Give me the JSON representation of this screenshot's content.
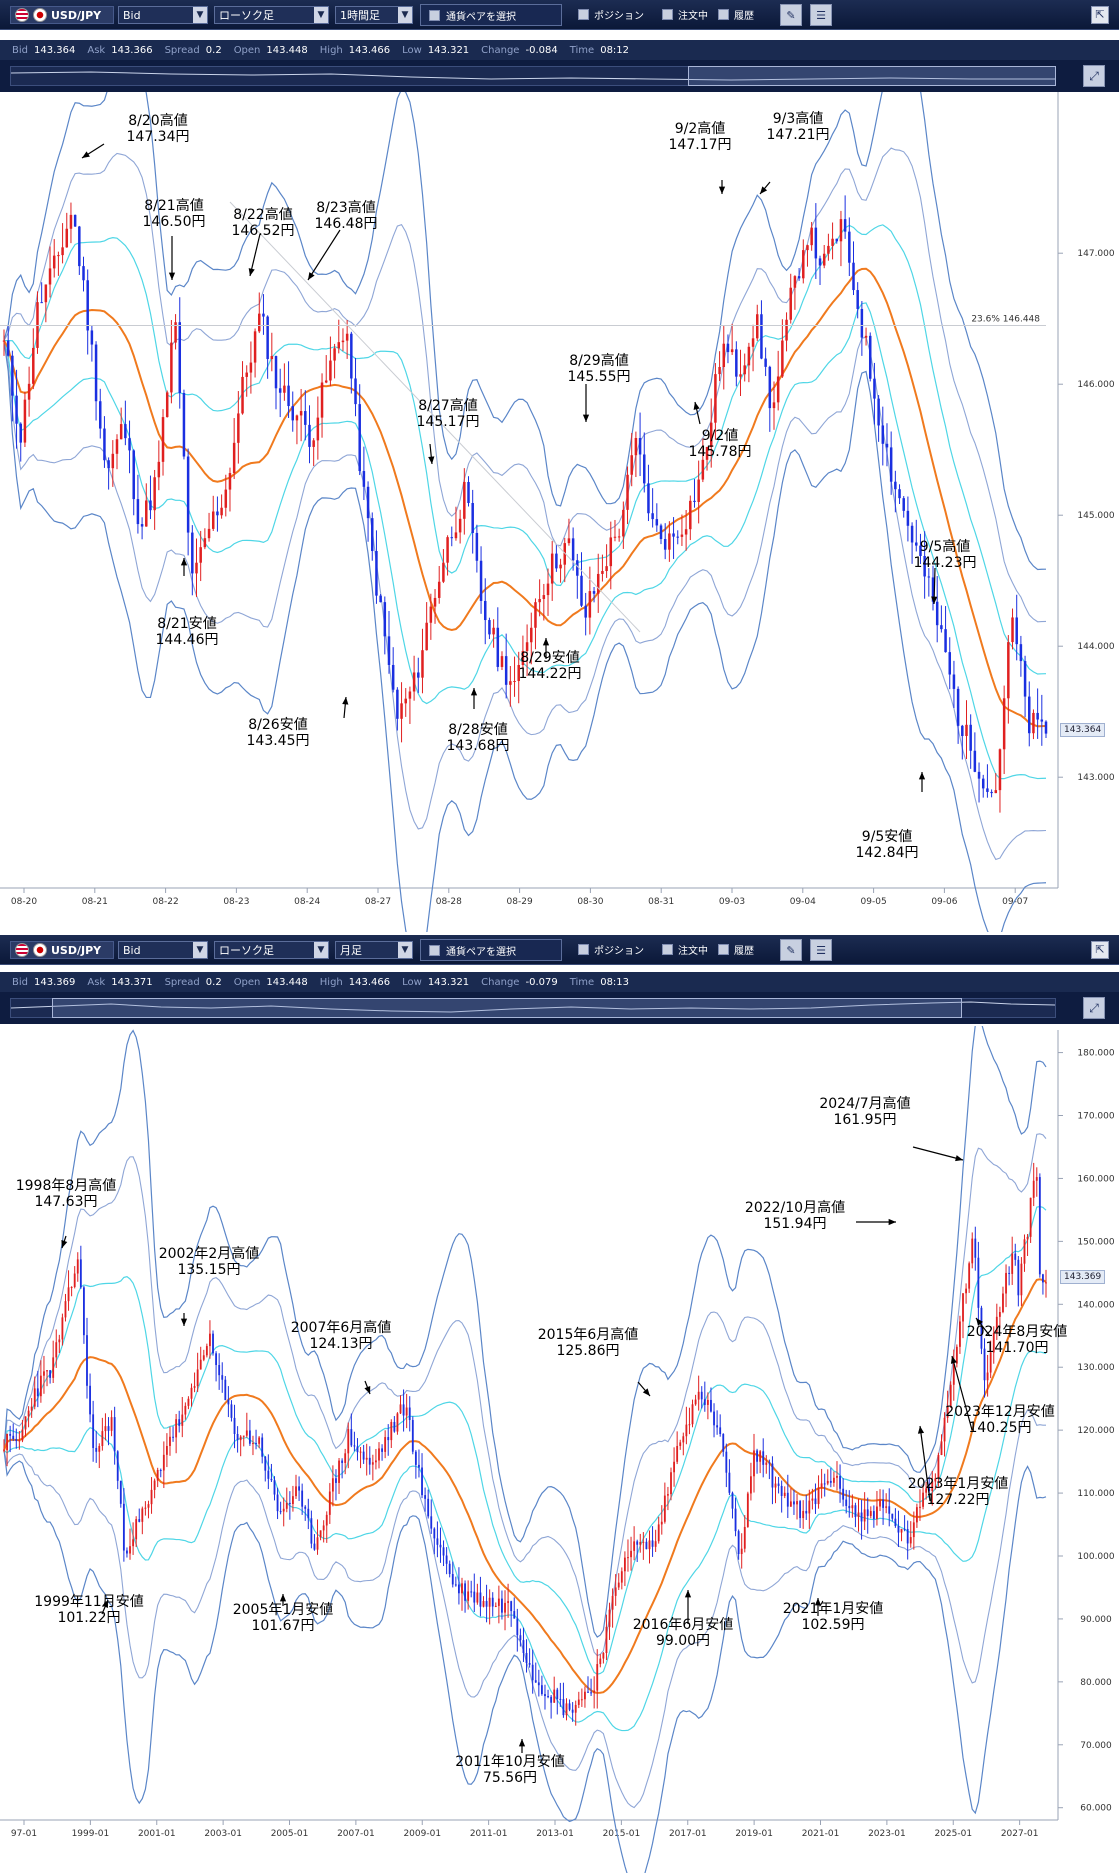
{
  "top": {
    "toolbar": {
      "symbol": "USD/JPY",
      "price_type": "Bid",
      "chart_type": "ローソク足",
      "timeframe": "1時間足",
      "pair_select": "通貨ペアを選択",
      "position": "ポジション",
      "orders": "注文中",
      "history": "履歴"
    },
    "quote": {
      "bid_label": "Bid",
      "bid": "143.364",
      "ask_label": "Ask",
      "ask": "143.366",
      "spread_label": "Spread",
      "spread": "0.2",
      "open_label": "Open",
      "open": "143.448",
      "high_label": "High",
      "high": "143.466",
      "low_label": "Low",
      "low": "143.321",
      "change_label": "Change",
      "change": "-0.084",
      "time_label": "Time",
      "time": "08:12"
    },
    "fib_label": "23.6%  146.448",
    "current_price": "143.364",
    "annotations": [
      {
        "l1": "8/20高値",
        "l2": "147.34円"
      },
      {
        "l1": "8/21高値",
        "l2": "146.50円"
      },
      {
        "l1": "8/22高値",
        "l2": "146.52円"
      },
      {
        "l1": "8/23高値",
        "l2": "146.48円"
      },
      {
        "l1": "8/21安値",
        "l2": "144.46円"
      },
      {
        "l1": "8/26安値",
        "l2": "143.45円"
      },
      {
        "l1": "8/27高値",
        "l2": "145.17円"
      },
      {
        "l1": "8/28安値",
        "l2": "143.68円"
      },
      {
        "l1": "8/29高値",
        "l2": "145.55円"
      },
      {
        "l1": "8/29安値",
        "l2": "144.22円"
      },
      {
        "l1": "9/2高値",
        "l2": "147.17円"
      },
      {
        "l1": "9/3高値",
        "l2": "147.21円"
      },
      {
        "l1": "9/2値",
        "l2": "145.78円"
      },
      {
        "l1": "9/5高値",
        "l2": "144.23円"
      },
      {
        "l1": "9/5安値",
        "l2": "142.84円"
      }
    ]
  },
  "bottom": {
    "toolbar": {
      "symbol": "USD/JPY",
      "price_type": "Bid",
      "chart_type": "ローソク足",
      "timeframe": "月足",
      "pair_select": "通貨ペアを選択",
      "position": "ポジション",
      "orders": "注文中",
      "history": "履歴"
    },
    "quote": {
      "bid_label": "Bid",
      "bid": "143.369",
      "ask_label": "Ask",
      "ask": "143.371",
      "spread_label": "Spread",
      "spread": "0.2",
      "open_label": "Open",
      "open": "143.448",
      "high_label": "High",
      "high": "143.466",
      "low_label": "Low",
      "low": "143.321",
      "change_label": "Change",
      "change": "-0.079",
      "time_label": "Time",
      "time": "08:13"
    },
    "current_price": "143.369",
    "annotations": [
      {
        "l1": "1998年8月高値",
        "l2": "147.63円"
      },
      {
        "l1": "2002年2月高値",
        "l2": "135.15円"
      },
      {
        "l1": "2007年6月高値",
        "l2": "124.13円"
      },
      {
        "l1": "1999年11月安値",
        "l2": "101.22円"
      },
      {
        "l1": "2005年1月安値",
        "l2": "101.67円"
      },
      {
        "l1": "2015年6月高値",
        "l2": "125.86円"
      },
      {
        "l1": "2011年10月安値",
        "l2": "75.56円"
      },
      {
        "l1": "2016年6月安値",
        "l2": "99.00円"
      },
      {
        "l1": "2021年1月安値",
        "l2": "102.59円"
      },
      {
        "l1": "2024/7月高値",
        "l2": "161.95円"
      },
      {
        "l1": "2022/10月高値",
        "l2": "151.94円"
      },
      {
        "l1": "2024年8月安値",
        "l2": "141.70円"
      },
      {
        "l1": "2023年12月安値",
        "l2": "140.25円"
      },
      {
        "l1": "2023年1月安値",
        "l2": "127.22円"
      }
    ]
  },
  "chart_data": [
    {
      "type": "candlestick",
      "title": "USD/JPY 1時間足",
      "x_ticks": [
        "08-20",
        "08-21",
        "08-22",
        "08-23",
        "08-24",
        "08-27",
        "08-28",
        "08-29",
        "08-30",
        "08-31",
        "09-03",
        "09-04",
        "09-05",
        "09-06",
        "09-07"
      ],
      "y_ticks": [
        "143.000",
        "144.000",
        "145.000",
        "146.000",
        "147.000"
      ],
      "ylim": [
        142.2,
        148.2
      ],
      "fib_level": 146.448,
      "key_points": [
        {
          "label": "8/20高値",
          "value": 147.34
        },
        {
          "label": "8/21高値",
          "value": 146.5
        },
        {
          "label": "8/22高値",
          "value": 146.52
        },
        {
          "label": "8/23高値",
          "value": 146.48
        },
        {
          "label": "8/21安値",
          "value": 144.46
        },
        {
          "label": "8/26安値",
          "value": 143.45
        },
        {
          "label": "8/27高値",
          "value": 145.17
        },
        {
          "label": "8/28安値",
          "value": 143.68
        },
        {
          "label": "8/29高値",
          "value": 145.55
        },
        {
          "label": "8/29安値",
          "value": 144.22
        },
        {
          "label": "9/2高値",
          "value": 147.17
        },
        {
          "label": "9/3高値",
          "value": 147.21
        },
        {
          "label": "9/2値",
          "value": 145.78
        },
        {
          "label": "9/5高値",
          "value": 144.23
        },
        {
          "label": "9/5安値",
          "value": 142.84
        }
      ],
      "price_path": [
        146.3,
        145.6,
        146.6,
        146.9,
        147.34,
        146.4,
        145.3,
        145.7,
        144.9,
        145.3,
        146.5,
        144.46,
        144.9,
        145.2,
        146.0,
        146.52,
        146.0,
        145.8,
        145.6,
        146.1,
        146.48,
        145.2,
        144.3,
        143.45,
        143.7,
        144.3,
        144.8,
        145.17,
        144.3,
        143.9,
        143.68,
        144.3,
        144.6,
        144.8,
        144.22,
        144.6,
        144.9,
        145.55,
        144.9,
        144.8,
        145.0,
        145.4,
        146.3,
        146.1,
        146.5,
        145.78,
        146.6,
        147.17,
        146.9,
        147.21,
        146.6,
        145.9,
        145.3,
        144.9,
        144.5,
        144.0,
        143.4,
        143.1,
        142.84,
        144.23,
        143.4,
        143.364
      ],
      "series": [
        {
          "name": "MA"
        },
        {
          "name": "BB ±1σ"
        },
        {
          "name": "BB ±2σ"
        },
        {
          "name": "BB ±3σ"
        }
      ]
    },
    {
      "type": "candlestick",
      "title": "USD/JPY 月足",
      "x_ticks": [
        "97-01",
        "1999-01",
        "2001-01",
        "2003-01",
        "2005-01",
        "2007-01",
        "2009-01",
        "2011-01",
        "2013-01",
        "2015-01",
        "2017-01",
        "2019-01",
        "2021-01",
        "2023-01",
        "2025-01",
        "2027-01"
      ],
      "y_ticks": [
        "60.000",
        "70.000",
        "80.000",
        "90.000",
        "100.000",
        "110.000",
        "120.000",
        "130.000",
        "140.000",
        "150.000",
        "160.000",
        "170.000",
        "180.000"
      ],
      "ylim": [
        59,
        182
      ],
      "key_points": [
        {
          "label": "1998年8月高値",
          "value": 147.63,
          "x": 1998.6
        },
        {
          "label": "2002年2月高値",
          "value": 135.15,
          "x": 2002.1
        },
        {
          "label": "2007年6月高値",
          "value": 124.13,
          "x": 2007.45
        },
        {
          "label": "1999年11月安値",
          "value": 101.22,
          "x": 1999.85
        },
        {
          "label": "2005年1月安値",
          "value": 101.67,
          "x": 2005.0
        },
        {
          "label": "2015年6月高値",
          "value": 125.86,
          "x": 2015.45
        },
        {
          "label": "2011年10月安値",
          "value": 75.56,
          "x": 2011.8
        },
        {
          "label": "2016年6月安値",
          "value": 99.0,
          "x": 2016.45
        },
        {
          "label": "2021年1月安値",
          "value": 102.59,
          "x": 2021.0
        },
        {
          "label": "2024/7月高値",
          "value": 161.95,
          "x": 2024.5
        },
        {
          "label": "2022/10月高値",
          "value": 151.94,
          "x": 2022.8
        },
        {
          "label": "2024年8月安値",
          "value": 141.7,
          "x": 2024.6
        },
        {
          "label": "2023年12月安値",
          "value": 140.25,
          "x": 2023.95
        },
        {
          "label": "2023年1月安値",
          "value": 127.22,
          "x": 2023.05
        }
      ],
      "price_path": [
        [
          1997.0,
          118
        ],
        [
          1997.4,
          126
        ],
        [
          1997.9,
          130
        ],
        [
          1998.6,
          147.63
        ],
        [
          1999.0,
          116
        ],
        [
          1999.5,
          122
        ],
        [
          1999.85,
          101.22
        ],
        [
          2000.5,
          108
        ],
        [
          2001.0,
          118
        ],
        [
          2001.6,
          124
        ],
        [
          2002.1,
          135.15
        ],
        [
          2002.8,
          120
        ],
        [
          2003.5,
          118
        ],
        [
          2004.0,
          107
        ],
        [
          2004.5,
          110
        ],
        [
          2005.0,
          101.67
        ],
        [
          2005.9,
          119
        ],
        [
          2006.5,
          114
        ],
        [
          2007.45,
          124.13
        ],
        [
          2008.0,
          107
        ],
        [
          2008.8,
          95
        ],
        [
          2009.5,
          93
        ],
        [
          2010.3,
          92
        ],
        [
          2010.9,
          81
        ],
        [
          2011.8,
          75.56
        ],
        [
          2012.5,
          79
        ],
        [
          2013.4,
          101
        ],
        [
          2014.2,
          102
        ],
        [
          2014.9,
          120
        ],
        [
          2015.45,
          125.86
        ],
        [
          2016.0,
          118
        ],
        [
          2016.45,
          99.0
        ],
        [
          2016.9,
          117
        ],
        [
          2017.5,
          111
        ],
        [
          2018.2,
          106
        ],
        [
          2018.9,
          113
        ],
        [
          2019.7,
          106
        ],
        [
          2020.3,
          108
        ],
        [
          2021.0,
          102.59
        ],
        [
          2021.8,
          114
        ],
        [
          2022.8,
          151.94
        ],
        [
          2023.05,
          127.22
        ],
        [
          2023.9,
          150
        ],
        [
          2023.95,
          140.25
        ],
        [
          2024.5,
          161.95
        ],
        [
          2024.6,
          141.7
        ],
        [
          2024.7,
          143.369
        ]
      ],
      "series": [
        {
          "name": "MA"
        },
        {
          "name": "BB ±1σ"
        },
        {
          "name": "BB ±2σ"
        },
        {
          "name": "BB ±3σ"
        }
      ]
    }
  ]
}
